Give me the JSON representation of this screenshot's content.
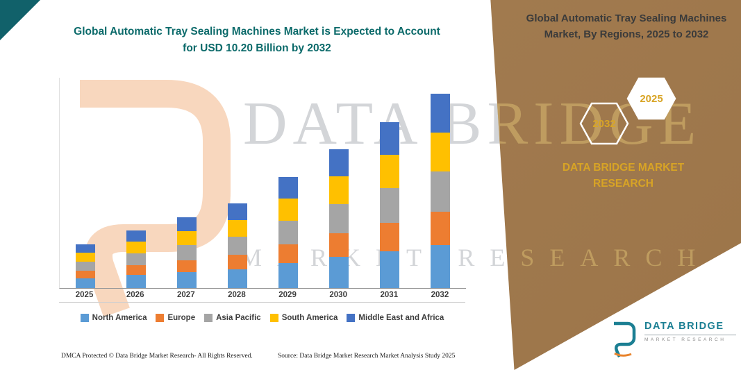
{
  "colors": {
    "panel-bg": "#A57E53",
    "teal": "#0B6A6A",
    "gold": "#D8A425",
    "corner-triangle": "#11616A",
    "logo-orange": "#F4BE94",
    "logo-teal": "#1B7F93"
  },
  "chart_title": "Global Automatic Tray Sealing Machines Market is Expected to Account for USD 10.20 Billion by 2032",
  "watermark": {
    "line1": "DATA BRIDGE",
    "line2": "MARKET RESEARCH"
  },
  "panel": {
    "title": "Global Automatic Tray Sealing Machines Market, By Regions, 2025 to 2032",
    "badge_back_year": "2032",
    "badge_front_year": "2025",
    "brand_text": "DATA BRIDGE MARKET RESEARCH"
  },
  "chart_data": {
    "type": "bar",
    "stacked": true,
    "title": "Global Automatic Tray Sealing Machines Market, By Regions, 2025 to 2032",
    "unit": "USD Billion",
    "categories": [
      "2025",
      "2026",
      "2027",
      "2028",
      "2029",
      "2030",
      "2031",
      "2032"
    ],
    "series": [
      {
        "name": "North America",
        "color": "#5B9BD5",
        "values": [
          0.52,
          0.68,
          0.84,
          1.0,
          1.31,
          1.63,
          1.95,
          2.26
        ]
      },
      {
        "name": "Europe",
        "color": "#ED7D31",
        "values": [
          0.39,
          0.51,
          0.63,
          0.76,
          1.0,
          1.25,
          1.49,
          1.74
        ]
      },
      {
        "name": "Asia Pacific",
        "color": "#A5A5A5",
        "values": [
          0.48,
          0.63,
          0.78,
          0.93,
          1.22,
          1.52,
          1.82,
          2.12
        ]
      },
      {
        "name": "South America",
        "color": "#FFC000",
        "values": [
          0.46,
          0.61,
          0.75,
          0.89,
          1.17,
          1.46,
          1.75,
          2.04
        ]
      },
      {
        "name": "Middle East and Africa",
        "color": "#4472C4",
        "values": [
          0.45,
          0.59,
          0.73,
          0.87,
          1.14,
          1.43,
          1.71,
          2.04
        ]
      }
    ],
    "totals_by_year": [
      2.3,
      3.02,
      3.73,
      4.45,
      5.84,
      7.29,
      8.72,
      10.2
    ],
    "highlight_total": "USD 10.20 Billion by 2032",
    "ylim": [
      0,
      10.5
    ],
    "grid": false,
    "legend_position": "bottom"
  },
  "footer": {
    "dmca": "DMCA Protected © Data Bridge Market Research-  All Rights Reserved.",
    "source": "Source: Data Bridge Market Research  Market Analysis Study 2025"
  },
  "brand_lockup": {
    "name": "DATA BRIDGE",
    "subtitle": "MARKET RESEARCH"
  }
}
